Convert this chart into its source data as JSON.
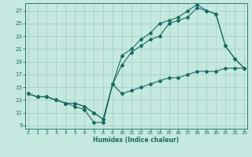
{
  "xlabel": "Humidex (Indice chaleur)",
  "x_ticks": [
    0,
    1,
    2,
    3,
    4,
    5,
    6,
    7,
    8,
    9,
    10,
    11,
    12,
    13,
    14,
    15,
    16,
    17,
    18,
    19,
    20,
    21,
    22,
    23
  ],
  "y_ticks": [
    9,
    11,
    13,
    15,
    17,
    19,
    21,
    23,
    25,
    27
  ],
  "xlim": [
    -0.3,
    23.3
  ],
  "ylim": [
    8.5,
    28.2
  ],
  "background_color": "#c5e8e0",
  "grid_color": "#9ecec5",
  "line_color": "#1a6b60",
  "line1_x": [
    0,
    1,
    2,
    3,
    4,
    5,
    6,
    7,
    8,
    9,
    10,
    11,
    12,
    13,
    14,
    15,
    16,
    17,
    18,
    19,
    20,
    21,
    22,
    23
  ],
  "line1_y": [
    14.0,
    13.5,
    13.5,
    13.0,
    12.5,
    12.0,
    11.5,
    9.5,
    9.5,
    15.5,
    14.0,
    14.5,
    15.0,
    15.5,
    16.0,
    16.5,
    16.5,
    17.0,
    17.5,
    17.5,
    17.5,
    18.0,
    18.0,
    18.0
  ],
  "line2_x": [
    0,
    1,
    2,
    3,
    4,
    5,
    6,
    7,
    8,
    9,
    10,
    11,
    12,
    13,
    14,
    15,
    16,
    17,
    18,
    19,
    20,
    21,
    22,
    23
  ],
  "line2_y": [
    14.0,
    13.5,
    13.5,
    13.0,
    12.5,
    12.5,
    12.0,
    11.0,
    10.0,
    15.5,
    18.5,
    20.5,
    21.5,
    22.5,
    23.0,
    25.0,
    25.5,
    26.0,
    27.5,
    27.0,
    26.5,
    21.5,
    19.5,
    18.0
  ],
  "line3_x": [
    0,
    1,
    2,
    3,
    4,
    5,
    6,
    7,
    8,
    9,
    10,
    11,
    12,
    13,
    14,
    15,
    16,
    17,
    18,
    19,
    20,
    21,
    22,
    23
  ],
  "line3_y": [
    14.0,
    13.5,
    13.5,
    13.0,
    12.5,
    12.5,
    12.0,
    11.0,
    10.0,
    15.5,
    20.0,
    21.0,
    22.5,
    23.5,
    25.0,
    25.5,
    26.0,
    27.0,
    28.0,
    27.0,
    26.5,
    21.5,
    19.5,
    18.0
  ]
}
